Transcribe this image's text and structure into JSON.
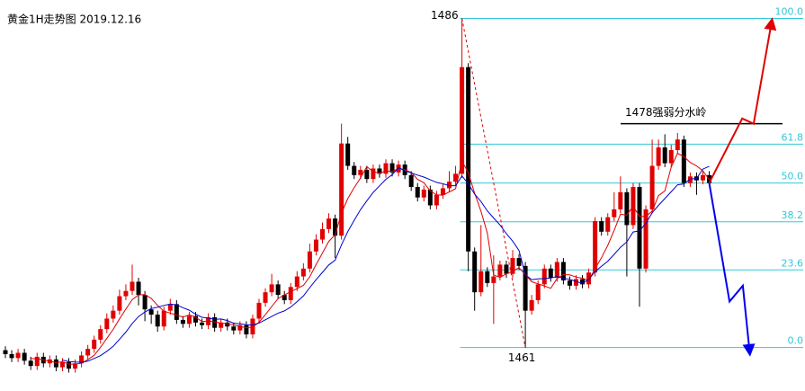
{
  "chart_data": {
    "type": "candlestick",
    "title": "黄金1H走势图 2019.12.16",
    "up_color": "#e00000",
    "down_color": "#000000",
    "xlim": [
      -0.85,
      126.1
    ],
    "ylim": [
      1457.7,
      1487.4
    ],
    "ohlc": [
      [
        1460.8,
        1461.1,
        1460.2,
        1460.5
      ],
      [
        1460.5,
        1460.8,
        1459.9,
        1460.2
      ],
      [
        1460.2,
        1460.9,
        1459.9,
        1460.6
      ],
      [
        1460.6,
        1460.9,
        1459.7,
        1460.0
      ],
      [
        1460.0,
        1460.3,
        1459.3,
        1459.6
      ],
      [
        1459.6,
        1460.6,
        1459.3,
        1460.3
      ],
      [
        1460.3,
        1460.6,
        1459.5,
        1459.8
      ],
      [
        1459.8,
        1460.4,
        1459.5,
        1460.1
      ],
      [
        1460.1,
        1460.4,
        1459.2,
        1459.5
      ],
      [
        1459.5,
        1460.2,
        1459.2,
        1459.9
      ],
      [
        1459.9,
        1460.2,
        1459.1,
        1459.4
      ],
      [
        1459.4,
        1460.1,
        1459.1,
        1459.8
      ],
      [
        1459.8,
        1460.7,
        1459.5,
        1460.4
      ],
      [
        1460.4,
        1461.2,
        1460.1,
        1460.9
      ],
      [
        1460.9,
        1461.9,
        1460.6,
        1461.6
      ],
      [
        1461.6,
        1462.7,
        1461.3,
        1462.4
      ],
      [
        1462.4,
        1463.6,
        1462.1,
        1463.2
      ],
      [
        1463.2,
        1464.2,
        1462.9,
        1463.8
      ],
      [
        1463.8,
        1465.4,
        1463.5,
        1464.9
      ],
      [
        1464.9,
        1465.8,
        1464.6,
        1465.3
      ],
      [
        1465.3,
        1467.3,
        1465.0,
        1466.0
      ],
      [
        1466.0,
        1466.3,
        1464.2,
        1465.0
      ],
      [
        1465.0,
        1465.3,
        1463.0,
        1463.9
      ],
      [
        1463.9,
        1464.2,
        1462.8,
        1463.5
      ],
      [
        1463.5,
        1463.8,
        1462.2,
        1462.6
      ],
      [
        1462.6,
        1464.1,
        1462.3,
        1463.8
      ],
      [
        1463.8,
        1464.7,
        1463.5,
        1464.3
      ],
      [
        1464.3,
        1464.6,
        1462.8,
        1463.1
      ],
      [
        1463.1,
        1463.4,
        1462.5,
        1462.8
      ],
      [
        1462.8,
        1463.7,
        1462.5,
        1463.4
      ],
      [
        1463.4,
        1463.7,
        1462.6,
        1462.9
      ],
      [
        1462.9,
        1463.2,
        1462.4,
        1462.7
      ],
      [
        1462.7,
        1463.6,
        1462.4,
        1463.3
      ],
      [
        1463.3,
        1463.6,
        1462.2,
        1462.5
      ],
      [
        1462.5,
        1463.2,
        1462.2,
        1462.9
      ],
      [
        1462.9,
        1463.2,
        1462.3,
        1462.6
      ],
      [
        1462.6,
        1462.9,
        1462.0,
        1462.3
      ],
      [
        1462.3,
        1463.0,
        1462.0,
        1462.7
      ],
      [
        1462.7,
        1463.0,
        1461.7,
        1462.0
      ],
      [
        1462.0,
        1463.5,
        1461.7,
        1463.2
      ],
      [
        1463.2,
        1464.7,
        1462.9,
        1464.4
      ],
      [
        1464.4,
        1465.5,
        1464.1,
        1465.2
      ],
      [
        1465.2,
        1466.6,
        1464.9,
        1465.8
      ],
      [
        1465.8,
        1466.1,
        1464.7,
        1465.0
      ],
      [
        1465.0,
        1465.3,
        1464.3,
        1464.6
      ],
      [
        1464.6,
        1465.9,
        1464.3,
        1465.6
      ],
      [
        1465.6,
        1466.8,
        1465.3,
        1466.4
      ],
      [
        1466.4,
        1467.4,
        1466.1,
        1467.0
      ],
      [
        1467.0,
        1468.9,
        1466.7,
        1468.3
      ],
      [
        1468.3,
        1469.6,
        1468.0,
        1469.2
      ],
      [
        1469.2,
        1470.5,
        1468.9,
        1470.0
      ],
      [
        1470.0,
        1471.2,
        1469.7,
        1470.8
      ],
      [
        1470.8,
        1471.1,
        1467.8,
        1469.5
      ],
      [
        1469.5,
        1478.0,
        1469.2,
        1476.5
      ],
      [
        1476.5,
        1477.0,
        1474.5,
        1474.8
      ],
      [
        1474.8,
        1475.1,
        1473.8,
        1474.1
      ],
      [
        1474.1,
        1474.8,
        1473.8,
        1474.5
      ],
      [
        1474.5,
        1474.8,
        1473.5,
        1473.8
      ],
      [
        1473.8,
        1474.9,
        1473.5,
        1474.6
      ],
      [
        1474.6,
        1474.9,
        1473.9,
        1474.2
      ],
      [
        1474.2,
        1475.3,
        1473.9,
        1475.0
      ],
      [
        1475.0,
        1475.3,
        1474.0,
        1474.3
      ],
      [
        1474.3,
        1475.2,
        1474.0,
        1474.9
      ],
      [
        1474.9,
        1475.2,
        1473.8,
        1474.1
      ],
      [
        1474.1,
        1474.4,
        1472.9,
        1473.2
      ],
      [
        1473.2,
        1473.5,
        1472.1,
        1472.4
      ],
      [
        1472.4,
        1473.3,
        1472.1,
        1473.0
      ],
      [
        1473.0,
        1473.3,
        1471.5,
        1471.8
      ],
      [
        1471.8,
        1472.9,
        1471.5,
        1472.6
      ],
      [
        1472.6,
        1473.4,
        1472.3,
        1473.1
      ],
      [
        1473.1,
        1474.4,
        1472.8,
        1473.6
      ],
      [
        1473.6,
        1474.8,
        1473.3,
        1474.2
      ],
      [
        1474.2,
        1486.0,
        1473.9,
        1482.3
      ],
      [
        1482.3,
        1482.6,
        1466.8,
        1468.3
      ],
      [
        1468.3,
        1468.6,
        1463.8,
        1465.2
      ],
      [
        1465.2,
        1470.3,
        1464.9,
        1466.8
      ],
      [
        1466.8,
        1467.1,
        1465.6,
        1465.9
      ],
      [
        1465.9,
        1468.0,
        1462.8,
        1466.4
      ],
      [
        1466.4,
        1467.6,
        1466.1,
        1467.3
      ],
      [
        1467.3,
        1467.6,
        1466.3,
        1466.6
      ],
      [
        1466.6,
        1468.4,
        1466.3,
        1467.8
      ],
      [
        1467.8,
        1468.1,
        1466.9,
        1467.2
      ],
      [
        1467.2,
        1467.5,
        1461.0,
        1463.8
      ],
      [
        1463.8,
        1465.0,
        1463.5,
        1464.6
      ],
      [
        1464.6,
        1466.1,
        1464.3,
        1465.8
      ],
      [
        1465.8,
        1467.3,
        1465.5,
        1467.0
      ],
      [
        1467.0,
        1467.3,
        1466.0,
        1466.3
      ],
      [
        1466.3,
        1467.8,
        1466.0,
        1467.5
      ],
      [
        1467.5,
        1467.8,
        1465.8,
        1466.1
      ],
      [
        1466.1,
        1466.4,
        1465.4,
        1465.7
      ],
      [
        1465.7,
        1466.5,
        1465.4,
        1466.2
      ],
      [
        1466.2,
        1466.5,
        1465.5,
        1465.8
      ],
      [
        1465.8,
        1467.0,
        1465.5,
        1466.7
      ],
      [
        1466.7,
        1470.9,
        1466.4,
        1470.6
      ],
      [
        1470.6,
        1470.9,
        1469.5,
        1469.8
      ],
      [
        1469.8,
        1471.2,
        1469.5,
        1470.9
      ],
      [
        1470.9,
        1472.8,
        1470.6,
        1471.5
      ],
      [
        1471.5,
        1474.0,
        1471.2,
        1472.8
      ],
      [
        1472.8,
        1473.1,
        1466.4,
        1470.3
      ],
      [
        1470.3,
        1473.5,
        1470.0,
        1473.2
      ],
      [
        1473.2,
        1473.5,
        1464.1,
        1467.0
      ],
      [
        1467.0,
        1471.8,
        1466.7,
        1471.5
      ],
      [
        1471.5,
        1476.8,
        1471.2,
        1474.8
      ],
      [
        1474.8,
        1476.8,
        1474.5,
        1476.2
      ],
      [
        1476.2,
        1477.2,
        1474.7,
        1475.0
      ],
      [
        1475.0,
        1476.4,
        1474.7,
        1476.0
      ],
      [
        1476.0,
        1477.3,
        1475.7,
        1476.8
      ],
      [
        1476.8,
        1477.1,
        1473.2,
        1473.5
      ],
      [
        1473.5,
        1474.3,
        1473.2,
        1474.0
      ],
      [
        1474.0,
        1474.3,
        1472.6,
        1473.7
      ],
      [
        1473.7,
        1474.4,
        1473.4,
        1474.1
      ],
      [
        1474.1,
        1474.4,
        1473.2,
        1473.5
      ]
    ],
    "moving_averages": [
      {
        "period": 5,
        "color": "#e00000"
      },
      {
        "period": 10,
        "color": "#0000cc"
      }
    ],
    "fib": {
      "low": 1461,
      "high": 1486,
      "color": "#30c8d8",
      "levels": [
        {
          "value": 0,
          "label": "0.0"
        },
        23.6,
        38.2,
        {
          "value": 50,
          "label": "50.0"
        },
        61.8,
        {
          "value": 100,
          "label": "100.0"
        }
      ]
    },
    "resistance": {
      "label": "1478强弱分水岭",
      "value": 1478
    },
    "projections": [
      {
        "color": "#e00000",
        "x": [
          111,
          116.2,
          118,
          120.9
        ],
        "values": [
          1473.5,
          1478.4,
          1478.0,
          1485.9
        ]
      },
      {
        "color": "#0000ee",
        "x": [
          111,
          114.2,
          116.3,
          117.4
        ],
        "values": [
          1473.5,
          1464.5,
          1465.7,
          1460.5
        ]
      }
    ]
  }
}
